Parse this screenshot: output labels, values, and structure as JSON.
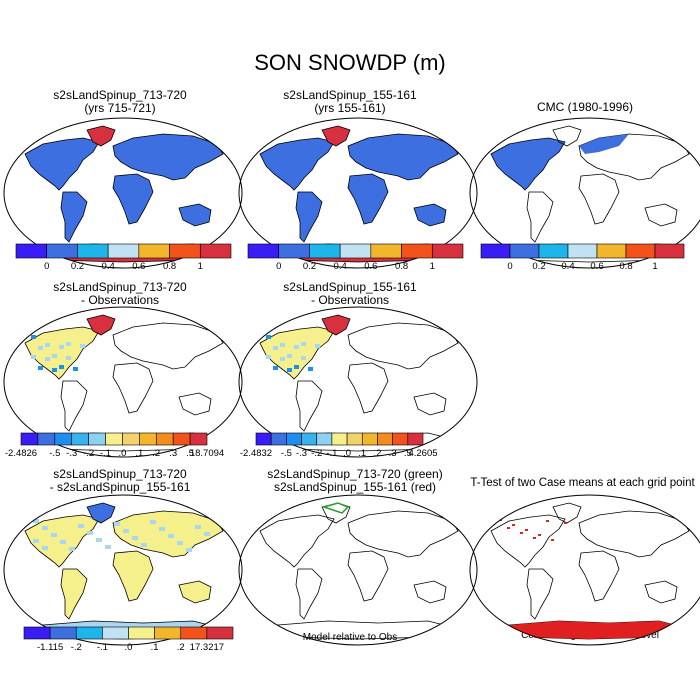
{
  "figure": {
    "title": "SON SNOWDP (m)"
  },
  "panels": [
    {
      "id": "p1",
      "title1": "s2sLandSpinup_713-720",
      "title2": "(yrs 715-721)",
      "fill": "land_antarctica"
    },
    {
      "id": "p2",
      "title1": "s2sLandSpinup_155-161",
      "title2": "(yrs 155-161)",
      "fill": "land_antarctica"
    },
    {
      "id": "p3",
      "title1": "CMC (1980-1996)",
      "title2": "",
      "fill": "north_america"
    },
    {
      "id": "p4",
      "title1": "s2sLandSpinup_713-720",
      "title2": "- Observations",
      "fill": "diff_na"
    },
    {
      "id": "p5",
      "title1": "s2sLandSpinup_155-161",
      "title2": "- Observations",
      "fill": "diff_na"
    },
    {
      "id": "p7",
      "title1": "s2sLandSpinup_713-720",
      "title2": "- s2sLandSpinup_155-161",
      "fill": "diff_global"
    },
    {
      "id": "p8",
      "title1": "s2sLandSpinup_713-720 (green)",
      "title2": "s2sLandSpinup_155-161 (red)",
      "fill": "outline"
    },
    {
      "id": "p9",
      "title1": "T-Test of two Case means at each grid point",
      "title2": "",
      "fill": "ttest"
    }
  ],
  "notes": {
    "model_relative": "Model relative to Obs",
    "significance": "Cells are significant at 0.1 level"
  },
  "chart_data": [
    {
      "type": "heatmap",
      "name": "colorbar-mean",
      "colors": [
        "#3a1df4",
        "#3d6fe0",
        "#1eb5ea",
        "#c0e2f2",
        "#f2b62c",
        "#f2521c",
        "#d7303e"
      ],
      "tick_labels": [
        "0",
        "0.2",
        "0.4",
        "0.6",
        "0.8",
        "1"
      ]
    },
    {
      "type": "heatmap",
      "name": "colorbar-diff-1",
      "colors": [
        "#3a1df4",
        "#3d6fe0",
        "#1e8ef0",
        "#3ab2ee",
        "#8cd0f2",
        "#f6f08c",
        "#f2d26c",
        "#f2b62c",
        "#f28c1c",
        "#f2521c",
        "#d7303e"
      ],
      "tick_labels": [
        "-2.4826",
        "-.5",
        "-.3",
        "-.2",
        "-.1",
        ".0",
        ".1",
        ".2",
        ".3",
        ".5",
        "18.7094"
      ]
    },
    {
      "type": "heatmap",
      "name": "colorbar-diff-2",
      "colors": [
        "#3a1df4",
        "#3d6fe0",
        "#1e8ef0",
        "#3ab2ee",
        "#8cd0f2",
        "#f6f08c",
        "#f2d26c",
        "#f2b62c",
        "#f28c1c",
        "#f2521c",
        "#d7303e"
      ],
      "tick_labels": [
        "-2.4832",
        "-.5",
        "-.3",
        "-.2",
        "-.1",
        ".0",
        ".1",
        ".2",
        ".3",
        ".5",
        "4.2605"
      ]
    },
    {
      "type": "heatmap",
      "name": "colorbar-diff-3",
      "colors": [
        "#3a1df4",
        "#3d6fe0",
        "#1eb5ea",
        "#c0e2f2",
        "#f6f08c",
        "#f2b62c",
        "#f2521c",
        "#d7303e"
      ],
      "tick_labels": [
        "-1.115",
        "-.2",
        "-.1",
        ".0",
        ".1",
        ".2",
        "17.3217"
      ]
    }
  ]
}
